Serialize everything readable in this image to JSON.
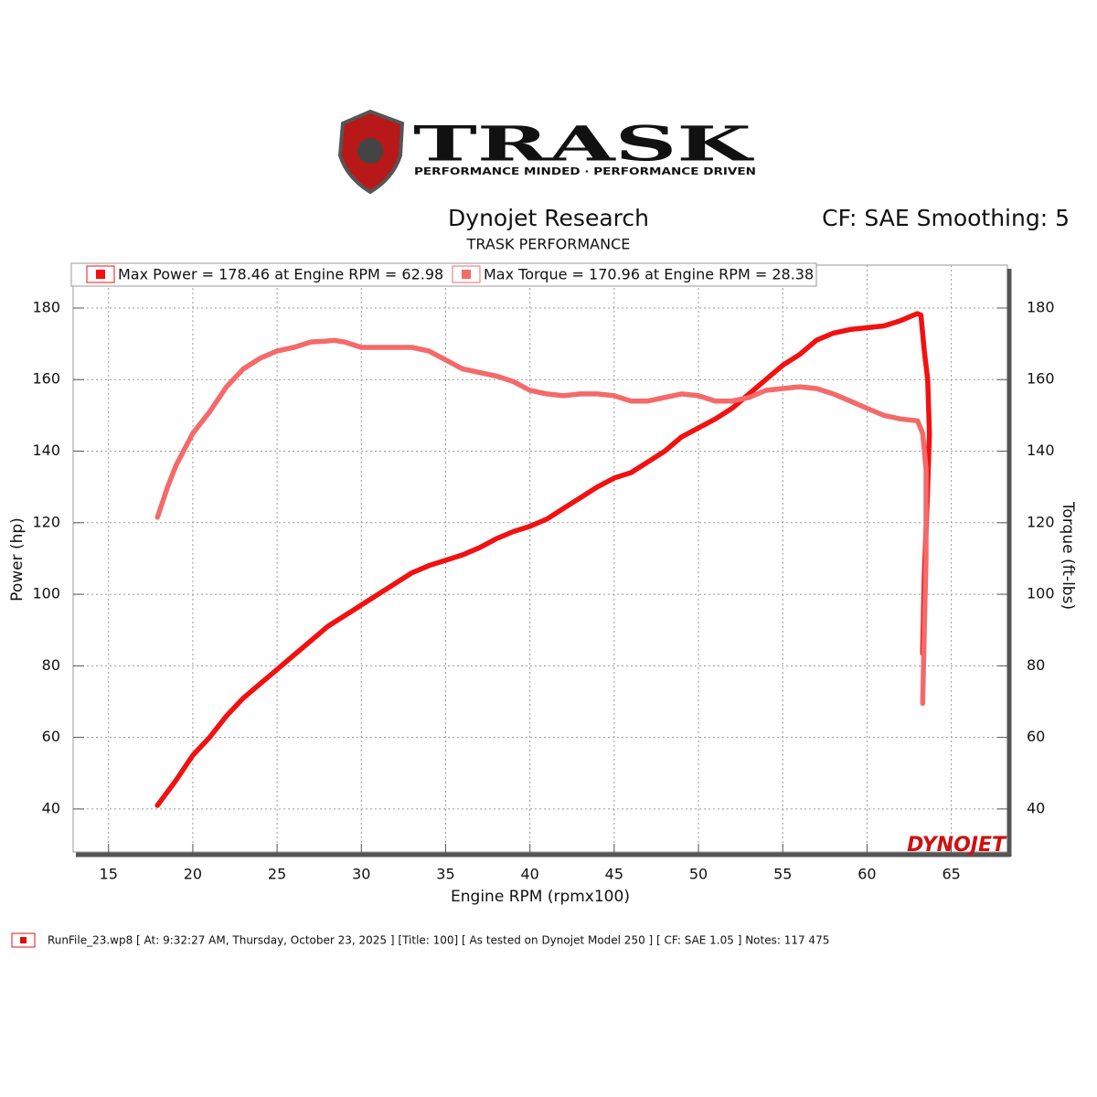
{
  "chart_data": {
    "type": "line",
    "logo": "TRASK",
    "logo_tagline": "PERFORMANCE MINDED · PERFORMANCE DRIVEN",
    "title": "Dynojet Research",
    "subtitle": "TRASK PERFORMANCE",
    "corner_note": "CF: SAE Smoothing: 5",
    "x_label": "Engine RPM (rpmx100)",
    "y_label": "Power (hp)",
    "y2_label": "Torque (ft-lbs)",
    "watermark": "DYNOJET",
    "footer": "RunFile_23.wp8 [ At: 9:32:27 AM, Thursday, October 23, 2025 ] [Title: 100]  [ As tested on Dynojet Model 250 ] [ CF: SAE 1.05 ] Notes: 117 475",
    "xlim": [
      12.9,
      68.6
    ],
    "xticks": [
      15,
      20,
      25,
      30,
      35,
      40,
      45,
      50,
      55,
      60,
      65
    ],
    "ylim": [
      27.2,
      192
    ],
    "yticks": [
      40,
      60,
      80,
      100,
      120,
      140,
      160,
      180
    ],
    "y2lim": [
      27.2,
      192
    ],
    "y2ticks": [
      40,
      60,
      80,
      100,
      120,
      140,
      160,
      180
    ],
    "grid": true,
    "series": [
      {
        "name": "Max Power = 178.46 at Engine RPM = 62.98",
        "color": "#f21010",
        "x": [
          17.9,
          19,
          20,
          21,
          22,
          23,
          24,
          25,
          26,
          27,
          28,
          29,
          30,
          31,
          32,
          33,
          34,
          35,
          36,
          37,
          38,
          39,
          40,
          41,
          42,
          43,
          44,
          45,
          46,
          47,
          48,
          49,
          50,
          51,
          52,
          53,
          54,
          55,
          56,
          57,
          58,
          59,
          60,
          61,
          62,
          62.98,
          63.2,
          63.4,
          63.6,
          63.7,
          63.6,
          63.4,
          63.3
        ],
        "values": [
          41,
          48,
          55,
          60,
          66,
          71,
          75,
          79,
          83,
          87,
          91,
          94,
          97,
          100,
          103,
          106,
          108,
          109.5,
          111,
          113,
          115.5,
          117.5,
          119,
          121,
          124,
          127,
          130,
          132.5,
          134,
          137,
          140,
          144,
          146.5,
          149,
          152,
          156,
          160,
          164,
          167,
          171,
          173,
          174,
          174.5,
          175,
          176.5,
          178.46,
          178,
          168,
          160,
          145,
          130,
          105,
          83.5
        ]
      },
      {
        "name": "Max Torque = 170.96 at Engine RPM = 28.38",
        "color": "#f46a6a",
        "axis": "y2",
        "x": [
          17.9,
          18.5,
          19,
          20,
          21,
          22,
          23,
          24,
          25,
          26,
          27,
          28,
          28.38,
          29,
          30,
          31,
          32,
          33,
          34,
          35,
          36,
          37,
          38,
          39,
          40,
          41,
          42,
          43,
          44,
          45,
          46,
          47,
          48,
          49,
          50,
          51,
          52,
          53,
          54,
          55,
          56,
          57,
          58,
          59,
          60,
          61,
          62,
          63,
          63.3,
          63.5,
          63.5,
          63.4,
          63.3
        ],
        "values": [
          121.5,
          130,
          136,
          145,
          151,
          158,
          163,
          166,
          168,
          169,
          170.5,
          170.8,
          170.96,
          170.5,
          169,
          169,
          169,
          169,
          168,
          165.5,
          163,
          162,
          161,
          159.5,
          157,
          156,
          155.5,
          156,
          156,
          155.5,
          154,
          154,
          155,
          156,
          155.5,
          154,
          154,
          155,
          157,
          157.5,
          158,
          157.5,
          156,
          154,
          152,
          150,
          149,
          148.5,
          145,
          135,
          110,
          90,
          69.5
        ]
      }
    ]
  }
}
